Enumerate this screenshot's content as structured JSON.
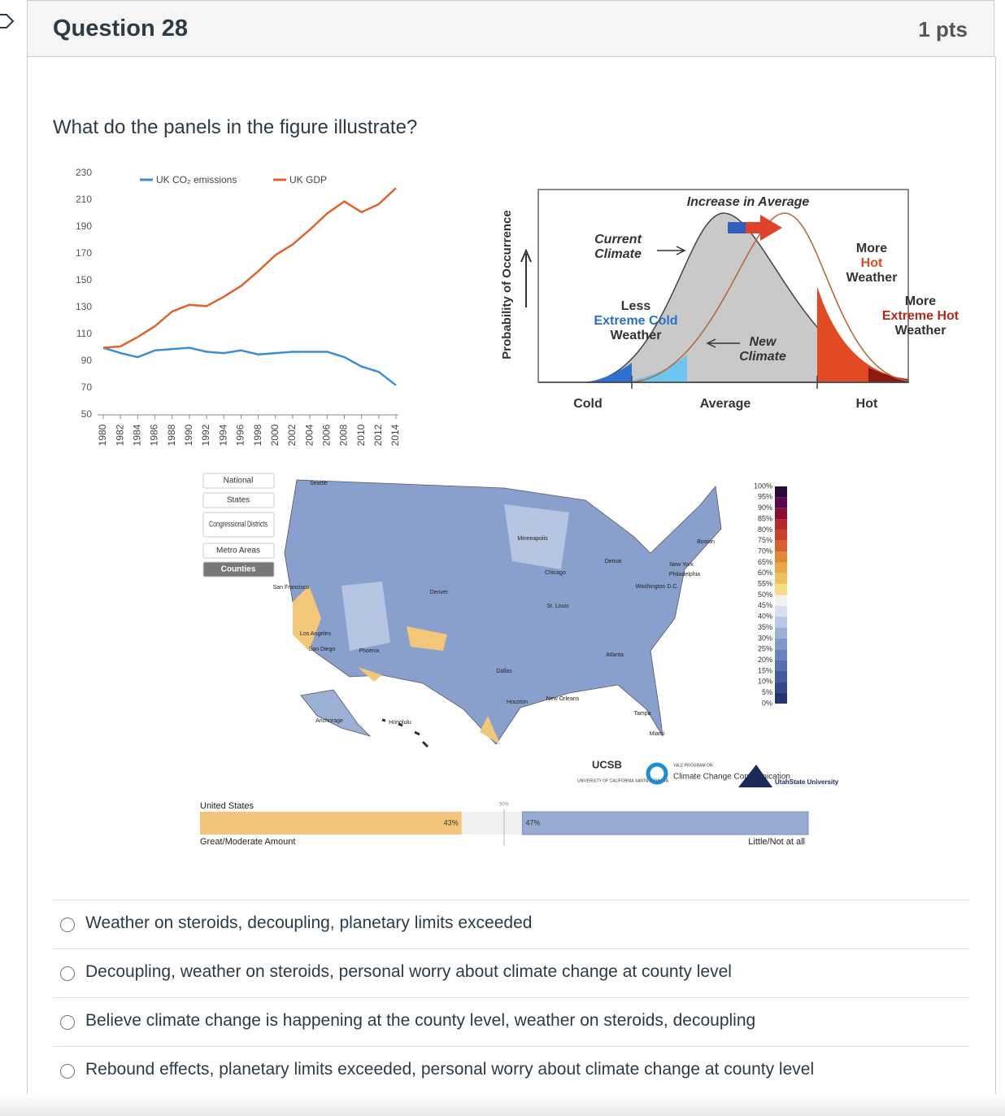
{
  "header": {
    "title": "Question 28",
    "points": "1 pts"
  },
  "question": {
    "prompt": "What do the panels in the figure illustrate?"
  },
  "chart_data": {
    "type": "line",
    "categories": [
      "1980",
      "1982",
      "1984",
      "1986",
      "1988",
      "1990",
      "1992",
      "1994",
      "1996",
      "1998",
      "2000",
      "2002",
      "2004",
      "2006",
      "2008",
      "2010",
      "2012",
      "2014"
    ],
    "series": [
      {
        "name": "UK CO₂ emissions",
        "color": "#3a8fd4",
        "values": [
          100,
          96,
          93,
          98,
          99,
          100,
          97,
          96,
          98,
          95,
          96,
          97,
          97,
          97,
          93,
          86,
          82,
          72
        ]
      },
      {
        "name": "UK GDP",
        "color": "#e0622d",
        "values": [
          100,
          101,
          108,
          116,
          127,
          132,
          131,
          138,
          146,
          157,
          169,
          177,
          188,
          200,
          209,
          201,
          207,
          219
        ]
      }
    ],
    "ylim": [
      50,
      230
    ],
    "yticks": [
      50,
      70,
      90,
      110,
      130,
      150,
      170,
      190,
      210,
      230
    ]
  },
  "distribution": {
    "y_axis": "Probability of Occurrence",
    "title": "Increase in Average",
    "current": [
      "Current",
      "Climate"
    ],
    "less_cold": [
      "Less",
      "Extreme Cold",
      "Weather"
    ],
    "new": [
      "New",
      "Climate"
    ],
    "more_hot": [
      "More",
      "Hot",
      "Weather"
    ],
    "more_extreme": [
      "More",
      "Extreme Hot",
      "Weather"
    ],
    "x_labels": [
      "Cold",
      "Average",
      "Hot"
    ]
  },
  "map": {
    "levels": [
      "National",
      "States",
      "Congressional Districts",
      "Metro Areas",
      "Counties"
    ],
    "legend_ticks": [
      "100%",
      "95%",
      "90%",
      "85%",
      "80%",
      "75%",
      "70%",
      "65%",
      "60%",
      "55%",
      "50%",
      "45%",
      "40%",
      "35%",
      "30%",
      "25%",
      "20%",
      "15%",
      "10%",
      "5%",
      "0%"
    ],
    "cities": [
      "Seattle",
      "Minneapolis",
      "Boston",
      "Detroit",
      "Chicago",
      "New York",
      "Philadelphia",
      "Washington D.C.",
      "San Francisco",
      "Denver",
      "St. Louis",
      "Los Angeles",
      "San Diego",
      "Phoenix",
      "Dallas",
      "Atlanta",
      "Houston",
      "New Orleans",
      "Tampa",
      "Miami",
      "Anchorage",
      "Honolulu"
    ],
    "logos": {
      "ucsb": "UCSB",
      "ucsb_sub": "UNIVERSITY OF CALIFORNIA SANTA BARBARA",
      "yale_top": "YALE PROGRAM ON",
      "yale": "Climate Change Communication",
      "usu": "UtahState University"
    },
    "bar": {
      "title": "United States",
      "values": [
        43,
        47
      ],
      "value_labels": [
        "43%",
        "47%"
      ],
      "midpoint": {
        "value": 50,
        "label": "50%"
      },
      "left_label": "Great/Moderate Amount",
      "right_label": "Little/Not at all"
    }
  },
  "answers": [
    "Weather on steroids, decoupling, planetary limits exceeded",
    "Decoupling, weather on steroids, personal worry about climate change at county level",
    "Believe climate change is happening at the county level, weather on steroids, decoupling",
    "Rebound effects, planetary limits exceeded, personal worry about climate change at county level"
  ]
}
